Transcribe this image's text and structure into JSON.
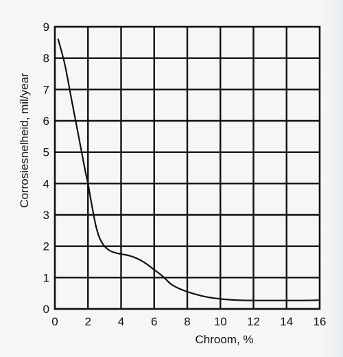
{
  "chart_data": {
    "type": "line",
    "title": "",
    "xlabel": "Chroom, %",
    "ylabel": "Corrosiesnelheid, mil/year",
    "xlim": [
      0,
      16
    ],
    "ylim": [
      0,
      9
    ],
    "x_ticks": [
      0,
      2,
      4,
      6,
      8,
      10,
      12,
      14,
      16
    ],
    "x_tick_labels": [
      "0",
      "2",
      "4",
      "6",
      "8",
      "10",
      "12",
      "14",
      "16"
    ],
    "y_ticks": [
      0,
      1,
      2,
      3,
      4,
      5,
      6,
      7,
      8,
      9
    ],
    "y_tick_labels": [
      "0",
      "1",
      "2",
      "3",
      "4",
      "5",
      "6",
      "7",
      "8",
      "9"
    ],
    "grid": true,
    "legend": "none",
    "line_color": "#111111",
    "series": [
      {
        "x": [
          0.2,
          0.6,
          1.0,
          1.4,
          1.8,
          2.0,
          2.2,
          2.5,
          2.8,
          3.2,
          3.6,
          4.0,
          4.5,
          5.0,
          5.5,
          6.0,
          6.5,
          7.0,
          7.5,
          8.0,
          9.0,
          10.0,
          11.0,
          12.0,
          13.0,
          14.0,
          15.0,
          16.0
        ],
        "values": [
          8.6,
          7.8,
          6.7,
          5.6,
          4.5,
          4.0,
          3.4,
          2.6,
          2.15,
          1.9,
          1.8,
          1.75,
          1.7,
          1.6,
          1.45,
          1.25,
          1.05,
          0.8,
          0.65,
          0.55,
          0.4,
          0.32,
          0.28,
          0.27,
          0.27,
          0.27,
          0.27,
          0.28
        ]
      }
    ]
  }
}
